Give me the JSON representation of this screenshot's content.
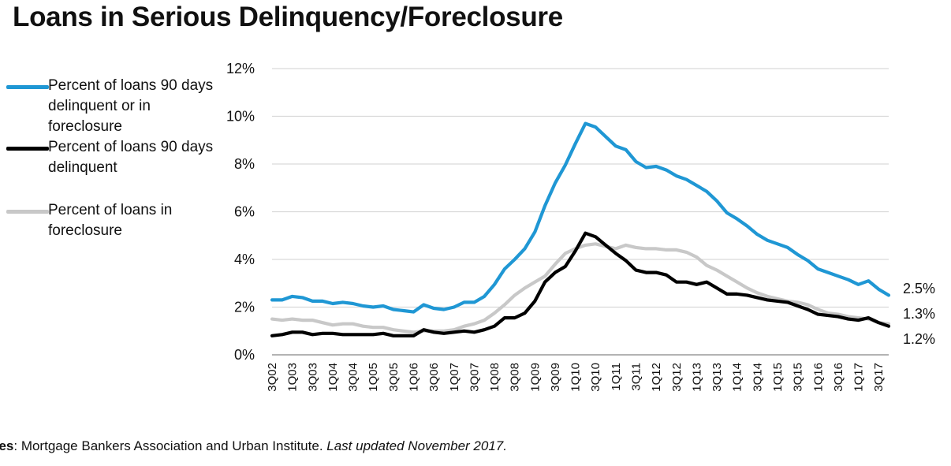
{
  "title": "Loans in Serious Delinquency/Foreclosure",
  "source": {
    "prefix": "urces",
    "text": ": Mortgage Bankers Association and Urban Institute. ",
    "updated": "Last updated November 2017."
  },
  "chart_data": {
    "type": "line",
    "title": "Loans in Serious Delinquency/Foreclosure",
    "xlabel": "",
    "ylabel": "",
    "ylim": [
      0,
      12
    ],
    "y_ticks": [
      "0%",
      "2%",
      "4%",
      "6%",
      "8%",
      "10%",
      "12%"
    ],
    "grid": "horizontal",
    "legend_position": "left",
    "x": [
      "3Q02",
      "4Q02",
      "1Q03",
      "2Q03",
      "3Q03",
      "4Q03",
      "1Q04",
      "2Q04",
      "3Q04",
      "4Q04",
      "1Q05",
      "2Q05",
      "3Q05",
      "4Q05",
      "1Q06",
      "2Q06",
      "3Q06",
      "4Q06",
      "1Q07",
      "2Q07",
      "3Q07",
      "4Q07",
      "1Q08",
      "2Q08",
      "3Q08",
      "4Q08",
      "1Q09",
      "2Q09",
      "3Q09",
      "4Q09",
      "1Q10",
      "2Q10",
      "3Q10",
      "4Q10",
      "1Q11",
      "2Q11",
      "3Q11",
      "4Q11",
      "1Q12",
      "2Q12",
      "3Q12",
      "4Q12",
      "1Q13",
      "2Q13",
      "3Q13",
      "4Q13",
      "1Q14",
      "2Q14",
      "3Q14",
      "4Q14",
      "1Q15",
      "2Q15",
      "3Q15",
      "4Q15",
      "1Q16",
      "2Q16",
      "3Q16",
      "4Q16",
      "1Q17",
      "2Q17",
      "3Q17",
      "4Q17"
    ],
    "x_tick_labels": [
      "3Q02",
      "1Q03",
      "3Q03",
      "1Q04",
      "3Q04",
      "1Q05",
      "3Q05",
      "1Q06",
      "3Q06",
      "1Q07",
      "3Q07",
      "1Q08",
      "3Q08",
      "1Q09",
      "3Q09",
      "1Q10",
      "3Q10",
      "1Q11",
      "3Q11",
      "1Q12",
      "3Q12",
      "1Q13",
      "3Q13",
      "1Q14",
      "3Q14",
      "1Q15",
      "3Q15",
      "1Q16",
      "3Q16",
      "1Q17",
      "3Q17"
    ],
    "series": [
      {
        "name": "Percent of loans 90 days delinquent or in foreclosure",
        "color": "#1f97d4",
        "end_label": "2.5%",
        "values": [
          2.3,
          2.3,
          2.45,
          2.4,
          2.25,
          2.25,
          2.15,
          2.2,
          2.15,
          2.05,
          2.0,
          2.05,
          1.9,
          1.85,
          1.8,
          2.1,
          1.95,
          1.9,
          2.0,
          2.2,
          2.2,
          2.45,
          2.95,
          3.6,
          4.0,
          4.45,
          5.15,
          6.25,
          7.2,
          7.95,
          8.85,
          9.7,
          9.55,
          9.15,
          8.75,
          8.6,
          8.1,
          7.85,
          7.9,
          7.75,
          7.5,
          7.35,
          7.1,
          6.85,
          6.45,
          5.95,
          5.7,
          5.4,
          5.05,
          4.8,
          4.65,
          4.5,
          4.2,
          3.95,
          3.6,
          3.45,
          3.3,
          3.15,
          2.95,
          3.1,
          2.75,
          2.5
        ]
      },
      {
        "name": "Percent of loans 90 days delinquent",
        "color": "#000000",
        "end_label": "1.2%",
        "values": [
          0.8,
          0.85,
          0.95,
          0.95,
          0.85,
          0.9,
          0.9,
          0.85,
          0.85,
          0.85,
          0.85,
          0.9,
          0.8,
          0.8,
          0.8,
          1.05,
          0.95,
          0.9,
          0.95,
          1.0,
          0.95,
          1.05,
          1.2,
          1.55,
          1.55,
          1.75,
          2.25,
          3.05,
          3.45,
          3.7,
          4.35,
          5.1,
          4.95,
          4.6,
          4.25,
          3.95,
          3.55,
          3.45,
          3.45,
          3.35,
          3.05,
          3.05,
          2.95,
          3.05,
          2.8,
          2.55,
          2.55,
          2.5,
          2.4,
          2.3,
          2.25,
          2.2,
          2.05,
          1.9,
          1.7,
          1.65,
          1.6,
          1.5,
          1.45,
          1.55,
          1.35,
          1.2
        ]
      },
      {
        "name": "Percent of loans in foreclosure",
        "color": "#c8c8c8",
        "end_label": "1.3%",
        "values": [
          1.5,
          1.45,
          1.5,
          1.45,
          1.45,
          1.35,
          1.25,
          1.3,
          1.3,
          1.2,
          1.15,
          1.15,
          1.05,
          1.0,
          0.95,
          1.0,
          1.0,
          1.0,
          1.05,
          1.2,
          1.3,
          1.45,
          1.75,
          2.1,
          2.5,
          2.8,
          3.05,
          3.3,
          3.8,
          4.25,
          4.45,
          4.6,
          4.65,
          4.55,
          4.45,
          4.6,
          4.5,
          4.45,
          4.45,
          4.4,
          4.4,
          4.3,
          4.1,
          3.75,
          3.55,
          3.3,
          3.05,
          2.8,
          2.6,
          2.45,
          2.35,
          2.25,
          2.2,
          2.1,
          1.9,
          1.75,
          1.7,
          1.6,
          1.55,
          1.5,
          1.35,
          1.3
        ]
      }
    ]
  },
  "legend": [
    {
      "label": "Percent of loans 90 days delinquent or in foreclosure",
      "color": "#1f97d4"
    },
    {
      "label": "Percent of loans 90 days delinquent",
      "color": "#000000"
    },
    {
      "label": "Percent of loans in foreclosure",
      "color": "#c8c8c8"
    }
  ]
}
